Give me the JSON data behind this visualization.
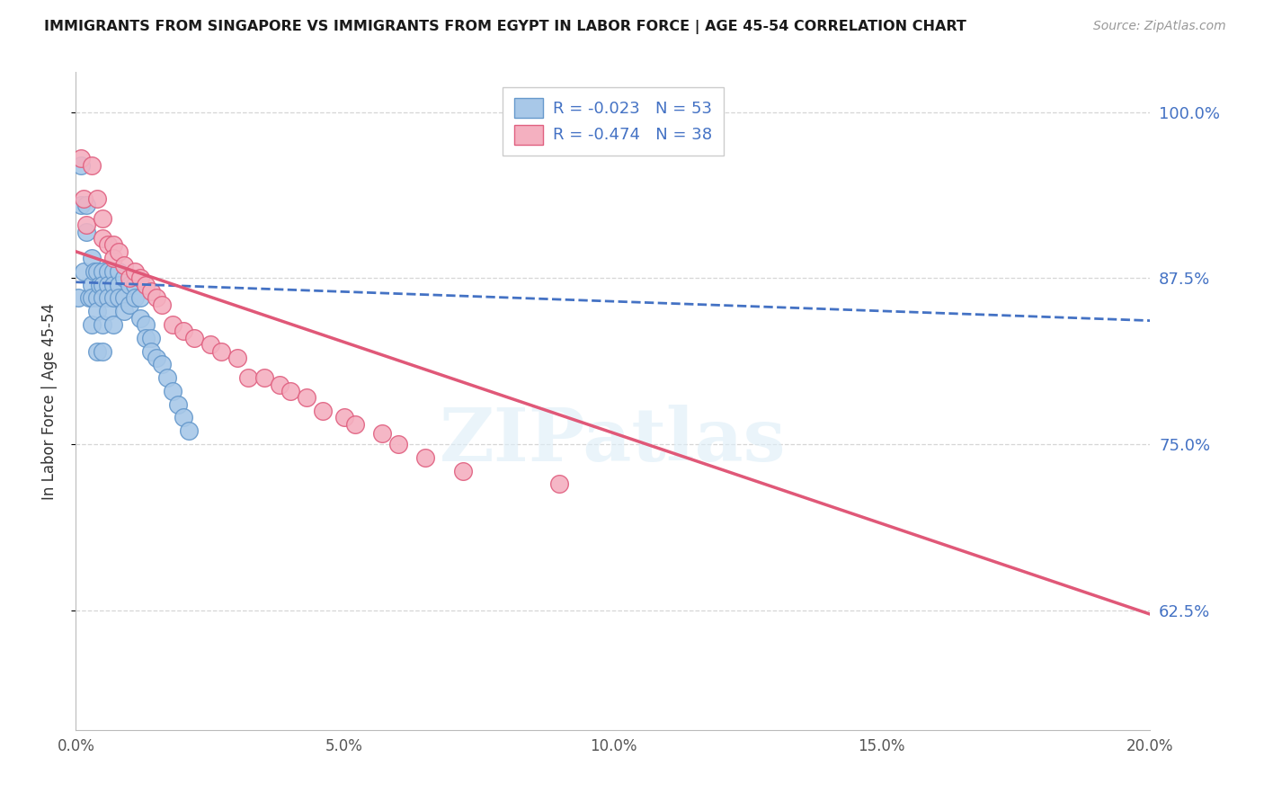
{
  "title": "IMMIGRANTS FROM SINGAPORE VS IMMIGRANTS FROM EGYPT IN LABOR FORCE | AGE 45-54 CORRELATION CHART",
  "source": "Source: ZipAtlas.com",
  "ylabel": "In Labor Force | Age 45-54",
  "xlim": [
    0.0,
    0.2
  ],
  "ylim": [
    0.535,
    1.03
  ],
  "yticks": [
    0.625,
    0.75,
    0.875,
    1.0
  ],
  "ytick_labels": [
    "62.5%",
    "75.0%",
    "87.5%",
    "100.0%"
  ],
  "xticks": [
    0.0,
    0.05,
    0.1,
    0.15,
    0.2
  ],
  "xtick_labels": [
    "0.0%",
    "5.0%",
    "10.0%",
    "15.0%",
    "20.0%"
  ],
  "singapore_color": "#a8c8e8",
  "egypt_color": "#f4b0c0",
  "singapore_edge": "#6699cc",
  "egypt_edge": "#e06080",
  "trend_singapore_color": "#4472c4",
  "trend_egypt_color": "#e05878",
  "singapore_x": [
    0.0005,
    0.001,
    0.001,
    0.0015,
    0.002,
    0.002,
    0.0025,
    0.003,
    0.003,
    0.003,
    0.003,
    0.0035,
    0.004,
    0.004,
    0.004,
    0.004,
    0.0045,
    0.005,
    0.005,
    0.005,
    0.005,
    0.005,
    0.006,
    0.006,
    0.006,
    0.006,
    0.007,
    0.007,
    0.007,
    0.007,
    0.008,
    0.008,
    0.008,
    0.009,
    0.009,
    0.009,
    0.01,
    0.01,
    0.011,
    0.011,
    0.012,
    0.012,
    0.013,
    0.013,
    0.014,
    0.014,
    0.015,
    0.016,
    0.017,
    0.018,
    0.019,
    0.02,
    0.021
  ],
  "singapore_y": [
    0.86,
    0.93,
    0.96,
    0.88,
    0.91,
    0.93,
    0.86,
    0.89,
    0.87,
    0.86,
    0.84,
    0.88,
    0.88,
    0.86,
    0.85,
    0.82,
    0.87,
    0.88,
    0.87,
    0.86,
    0.84,
    0.82,
    0.88,
    0.87,
    0.86,
    0.85,
    0.88,
    0.87,
    0.86,
    0.84,
    0.88,
    0.87,
    0.86,
    0.875,
    0.86,
    0.85,
    0.87,
    0.855,
    0.87,
    0.86,
    0.86,
    0.845,
    0.84,
    0.83,
    0.83,
    0.82,
    0.815,
    0.81,
    0.8,
    0.79,
    0.78,
    0.77,
    0.76
  ],
  "egypt_x": [
    0.001,
    0.0015,
    0.002,
    0.003,
    0.004,
    0.005,
    0.005,
    0.006,
    0.007,
    0.007,
    0.008,
    0.009,
    0.01,
    0.011,
    0.012,
    0.013,
    0.014,
    0.015,
    0.016,
    0.018,
    0.02,
    0.022,
    0.025,
    0.027,
    0.03,
    0.032,
    0.035,
    0.038,
    0.04,
    0.043,
    0.046,
    0.05,
    0.052,
    0.057,
    0.06,
    0.065,
    0.072,
    0.09
  ],
  "egypt_y": [
    0.965,
    0.935,
    0.915,
    0.96,
    0.935,
    0.92,
    0.905,
    0.9,
    0.9,
    0.89,
    0.895,
    0.885,
    0.875,
    0.88,
    0.875,
    0.87,
    0.865,
    0.86,
    0.855,
    0.84,
    0.835,
    0.83,
    0.825,
    0.82,
    0.815,
    0.8,
    0.8,
    0.795,
    0.79,
    0.785,
    0.775,
    0.77,
    0.765,
    0.758,
    0.75,
    0.74,
    0.73,
    0.72
  ],
  "watermark_text": "ZIPatlas",
  "background_color": "#ffffff",
  "grid_color": "#cccccc",
  "trend_sg_x0": 0.0,
  "trend_sg_x1": 0.2,
  "trend_sg_y0": 0.872,
  "trend_sg_y1": 0.843,
  "trend_eg_x0": 0.0,
  "trend_eg_x1": 0.2,
  "trend_eg_y0": 0.895,
  "trend_eg_y1": 0.622
}
